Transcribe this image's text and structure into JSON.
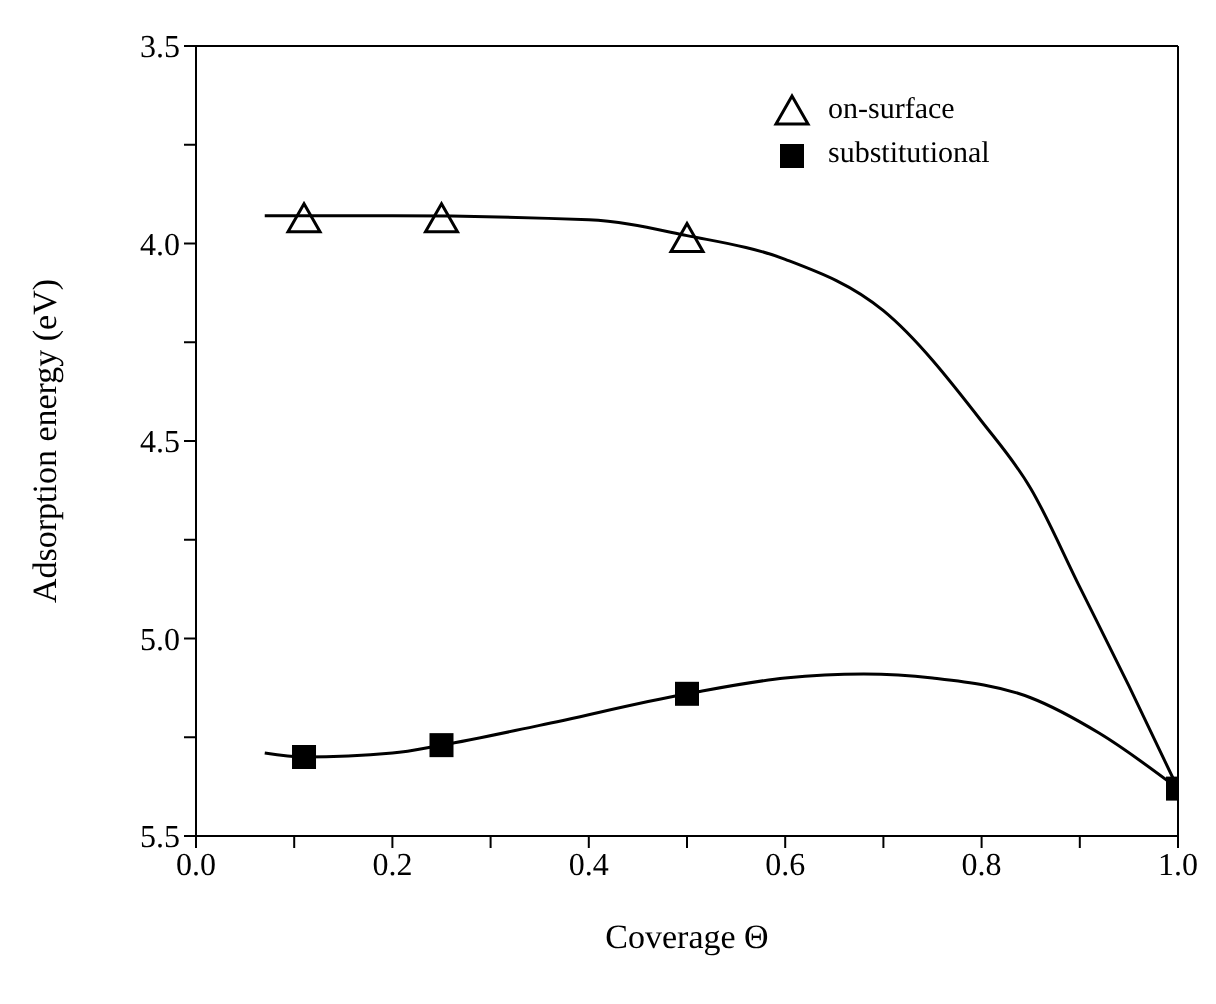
{
  "chart_data": {
    "type": "scatter",
    "xlabel": "Coverage Θ",
    "ylabel": "Adsorption energy (eV)",
    "xlim": [
      0.0,
      1.0
    ],
    "ylim": [
      5.5,
      3.5
    ],
    "xticks": [
      {
        "value": 0.0,
        "label": "0.0"
      },
      {
        "value": 0.1,
        "label": null
      },
      0.2,
      {
        "value": 0.3,
        "label": null
      },
      0.4,
      {
        "value": 0.5,
        "label": null
      },
      0.6,
      {
        "value": 0.7,
        "label": null
      },
      0.8,
      {
        "value": 0.9,
        "label": null
      },
      {
        "value": 1.0,
        "label": "1.0"
      }
    ],
    "yticks": [
      3.5,
      {
        "value": 3.75,
        "label": null
      },
      {
        "value": 4.0,
        "label": "4.0"
      },
      {
        "value": 4.25,
        "label": null
      },
      4.5,
      {
        "value": 4.75,
        "label": null
      },
      {
        "value": 5.0,
        "label": "5.0"
      },
      {
        "value": 5.25,
        "label": null
      },
      5.5
    ],
    "grid": false,
    "legend": "top right",
    "series": [
      {
        "name": "on-surface",
        "marker": "triangle",
        "color": "#000000",
        "x": [
          0.11,
          0.25,
          0.5
        ],
        "values": [
          3.94,
          3.94,
          3.99
        ]
      },
      {
        "name": "substitutional",
        "marker": "square",
        "color": "#000000",
        "x": [
          0.11,
          0.25,
          0.5,
          1.0
        ],
        "values": [
          5.3,
          5.27,
          5.14,
          5.38
        ]
      },
      {
        "type": "line",
        "marker": "none",
        "color": "#000000",
        "x": [
          0.07,
          0.2,
          0.4,
          0.5,
          0.6,
          0.7,
          0.8,
          0.85,
          0.9,
          0.95,
          1.0
        ],
        "values": [
          3.93,
          3.93,
          3.94,
          3.98,
          4.04,
          4.17,
          4.45,
          4.62,
          4.87,
          5.12,
          5.38
        ]
      },
      {
        "type": "line",
        "marker": "none",
        "color": "#000000",
        "x": [
          0.07,
          0.11,
          0.2,
          0.25,
          0.35,
          0.5,
          0.6,
          0.68,
          0.75,
          0.85,
          0.92,
          1.0
        ],
        "values": [
          5.29,
          5.3,
          5.29,
          5.27,
          5.22,
          5.14,
          5.1,
          5.09,
          5.1,
          5.15,
          5.24,
          5.38
        ]
      }
    ]
  }
}
